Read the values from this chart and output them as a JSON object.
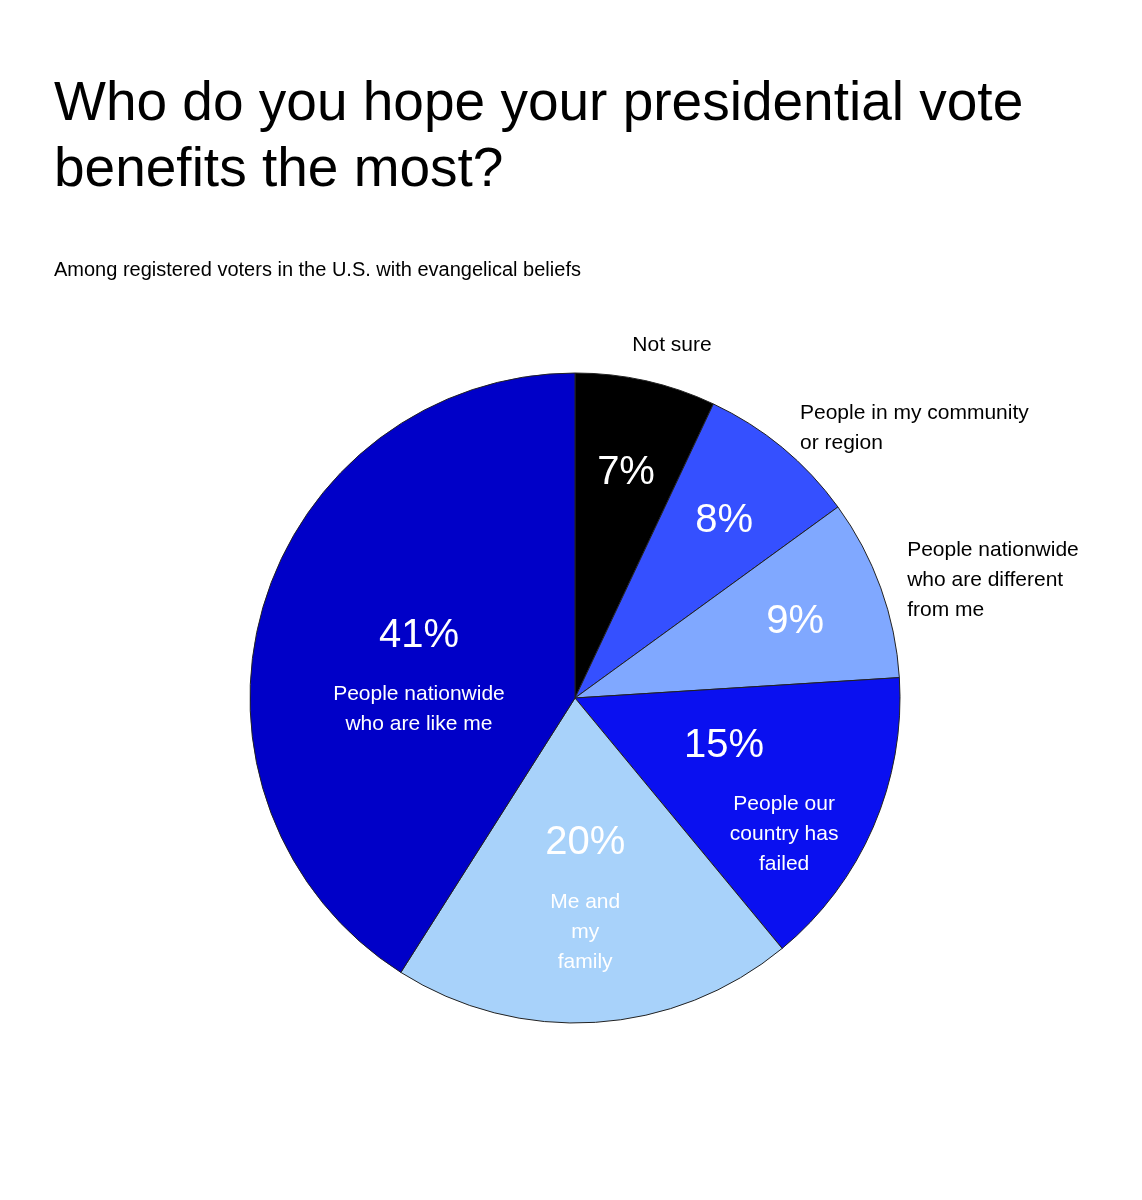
{
  "chart_data": {
    "type": "pie",
    "title": "Who do you hope your presidential vote benefits the most?",
    "subtitle": "Among registered voters in the U.S. with evangelical beliefs",
    "categories": [
      "Not sure",
      "People in my community or region",
      "People nationwide who are different from me",
      "People our country has failed",
      "Me and my family",
      "People nationwide who are like me"
    ],
    "values": [
      7,
      8,
      9,
      15,
      20,
      41
    ],
    "colors": [
      "#000000",
      "#3550ff",
      "#80a8ff",
      "#0a10f0",
      "#a8d2fa",
      "#0000c8"
    ],
    "value_labels": [
      "7%",
      "8%",
      "9%",
      "15%",
      "20%",
      "41%"
    ]
  }
}
